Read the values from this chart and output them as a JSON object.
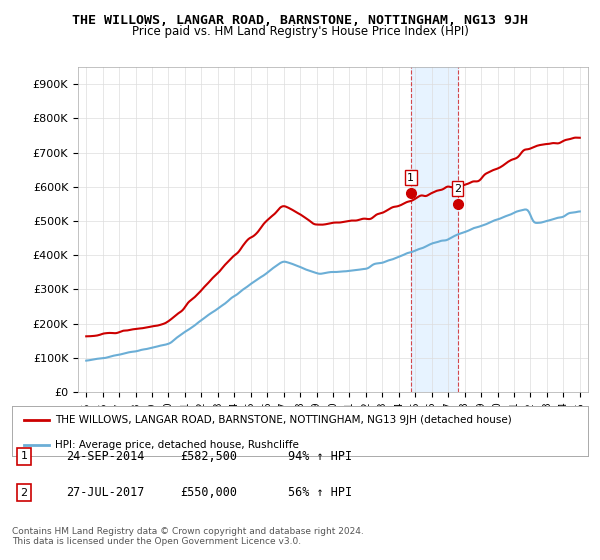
{
  "title": "THE WILLOWS, LANGAR ROAD, BARNSTONE, NOTTINGHAM, NG13 9JH",
  "subtitle": "Price paid vs. HM Land Registry's House Price Index (HPI)",
  "ylabel_ticks": [
    "£0",
    "£100K",
    "£200K",
    "£300K",
    "£400K",
    "£500K",
    "£600K",
    "£700K",
    "£800K",
    "£900K"
  ],
  "ytick_values": [
    0,
    100000,
    200000,
    300000,
    400000,
    500000,
    600000,
    700000,
    800000,
    900000
  ],
  "ylim": [
    0,
    950000
  ],
  "x_start_year": 1995,
  "x_end_year": 2025,
  "hpi_color": "#6baed6",
  "price_color": "#cc0000",
  "point1_year": 2014.73,
  "point1_value": 582500,
  "point2_year": 2017.57,
  "point2_value": 550000,
  "legend_label_red": "THE WILLOWS, LANGAR ROAD, BARNSTONE, NOTTINGHAM, NG13 9JH (detached house)",
  "legend_label_blue": "HPI: Average price, detached house, Rushcliffe",
  "table_row1": [
    "1",
    "24-SEP-2014",
    "£582,500",
    "94% ↑ HPI"
  ],
  "table_row2": [
    "2",
    "27-JUL-2017",
    "£550,000",
    "56% ↑ HPI"
  ],
  "footnote": "Contains HM Land Registry data © Crown copyright and database right 2024.\nThis data is licensed under the Open Government Licence v3.0.",
  "background_color": "#ffffff",
  "grid_color": "#dddddd",
  "shade_color": "#ddeeff"
}
